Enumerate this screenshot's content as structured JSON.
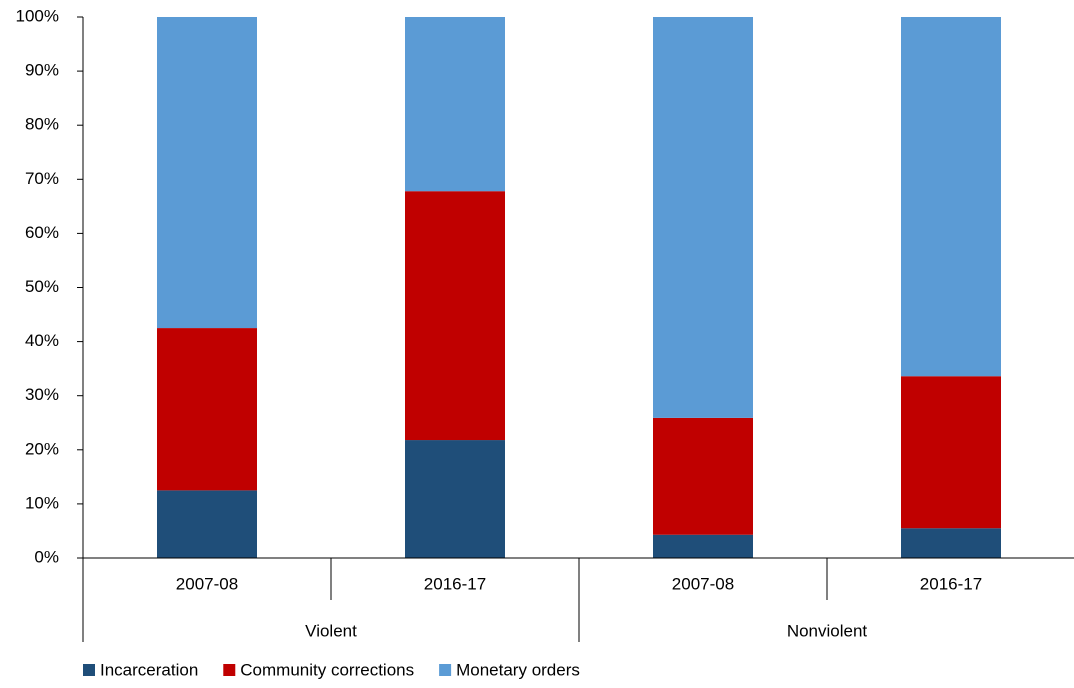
{
  "chart_data": {
    "type": "stacked-bar",
    "groups": [
      "Violent",
      "Nonviolent"
    ],
    "categories": [
      "2007-08",
      "2016-17",
      "2007-08",
      "2016-17"
    ],
    "series": [
      {
        "name": "Incarceration",
        "color": "#1f4e79",
        "values": [
          12.5,
          21.8,
          4.3,
          5.5
        ]
      },
      {
        "name": "Community corrections",
        "color": "#c00000",
        "values": [
          30.0,
          46.0,
          21.6,
          28.1
        ]
      },
      {
        "name": "Monetary orders",
        "color": "#5b9bd5",
        "values": [
          57.5,
          32.2,
          74.1,
          66.4
        ]
      }
    ],
    "ylim": [
      0,
      100
    ],
    "yticks": [
      {
        "value": 0,
        "label": "0%"
      },
      {
        "value": 10,
        "label": "10%"
      },
      {
        "value": 20,
        "label": "20%"
      },
      {
        "value": 30,
        "label": "30%"
      },
      {
        "value": 40,
        "label": "40%"
      },
      {
        "value": 50,
        "label": "50%"
      },
      {
        "value": 60,
        "label": "60%"
      },
      {
        "value": 70,
        "label": "70%"
      },
      {
        "value": 80,
        "label": "80%"
      },
      {
        "value": 90,
        "label": "90%"
      },
      {
        "value": 100,
        "label": "100%"
      }
    ],
    "legend": "bottom-left"
  }
}
